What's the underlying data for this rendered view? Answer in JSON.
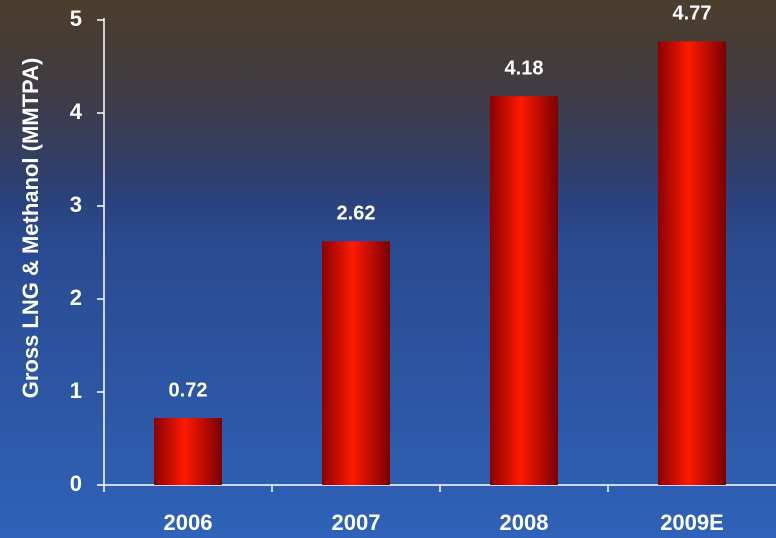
{
  "chart_data": {
    "type": "bar",
    "y_label": "Gross LNG & Methanol (MMTPA)",
    "categories": [
      "2006",
      "2007",
      "2008",
      "2009E"
    ],
    "values": [
      0.72,
      2.62,
      4.18,
      4.77
    ],
    "color": "#ff1a00",
    "ylim": [
      0,
      5
    ],
    "yticks": [
      0,
      1,
      2,
      3,
      4,
      5
    ]
  }
}
